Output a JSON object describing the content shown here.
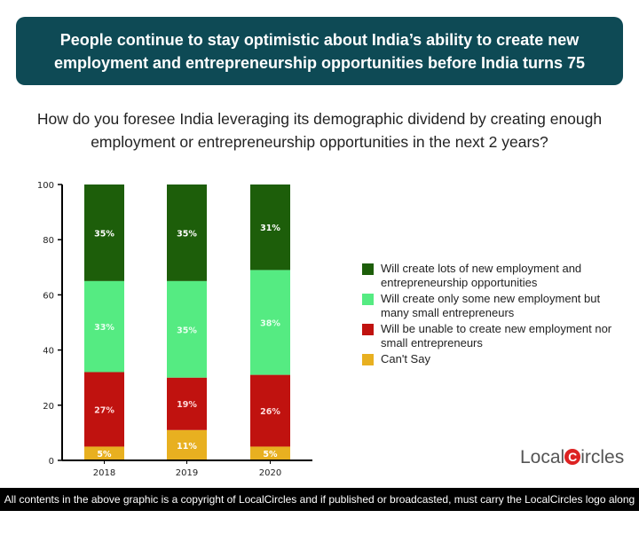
{
  "header": {
    "title": "People continue to stay optimistic about India’s ability to create new employment and entrepreneurship opportunities before India turns 75"
  },
  "question": "How do you foresee India leveraging its demographic dividend by creating enough employment or entrepreneurship opportunities in the next 2 years?",
  "chart_data": {
    "type": "bar",
    "stacked": true,
    "categories": [
      "2018",
      "2019",
      "2020"
    ],
    "ylim": [
      0,
      100
    ],
    "yticks": [
      "0",
      "20",
      "40",
      "60",
      "80",
      "100"
    ],
    "legend_position": "right",
    "series": [
      {
        "name": "Can't Say",
        "color": "#e8b020",
        "values": [
          5,
          11,
          5
        ],
        "labels": [
          "5%",
          "11%",
          "5%"
        ]
      },
      {
        "name": "Will be unable to create new employment nor small entrepreneurs",
        "color": "#c0120f",
        "values": [
          27,
          19,
          26
        ],
        "labels": [
          "27%",
          "19%",
          "26%"
        ]
      },
      {
        "name": "Will create only some new employment but many small entrepreneurs",
        "color": "#55eb82",
        "values": [
          33,
          35,
          38
        ],
        "labels": [
          "33%",
          "35%",
          "38%"
        ]
      },
      {
        "name": "Will create lots of new employment and entrepreneurship opportunities",
        "color": "#1d5e0a",
        "values": [
          35,
          35,
          31
        ],
        "labels": [
          "35%",
          "35%",
          "31%"
        ]
      }
    ]
  },
  "legend": [
    {
      "label": "Will create lots of new employment and entrepreneurship opportunities",
      "color": "#1d5e0a"
    },
    {
      "label": "Will create only some new employment but many small entrepreneurs",
      "color": "#55eb82"
    },
    {
      "label": "Will be unable to create new employment nor small entrepreneurs",
      "color": "#c0120f"
    },
    {
      "label": "Can't Say",
      "color": "#e8b020"
    }
  ],
  "logo": {
    "text_left": "Local",
    "text_c": "C",
    "text_right": "ircles"
  },
  "footer": "All contents in the above graphic is a copyright of LocalCircles and if published or broadcasted, must carry the LocalCircles logo along with it."
}
